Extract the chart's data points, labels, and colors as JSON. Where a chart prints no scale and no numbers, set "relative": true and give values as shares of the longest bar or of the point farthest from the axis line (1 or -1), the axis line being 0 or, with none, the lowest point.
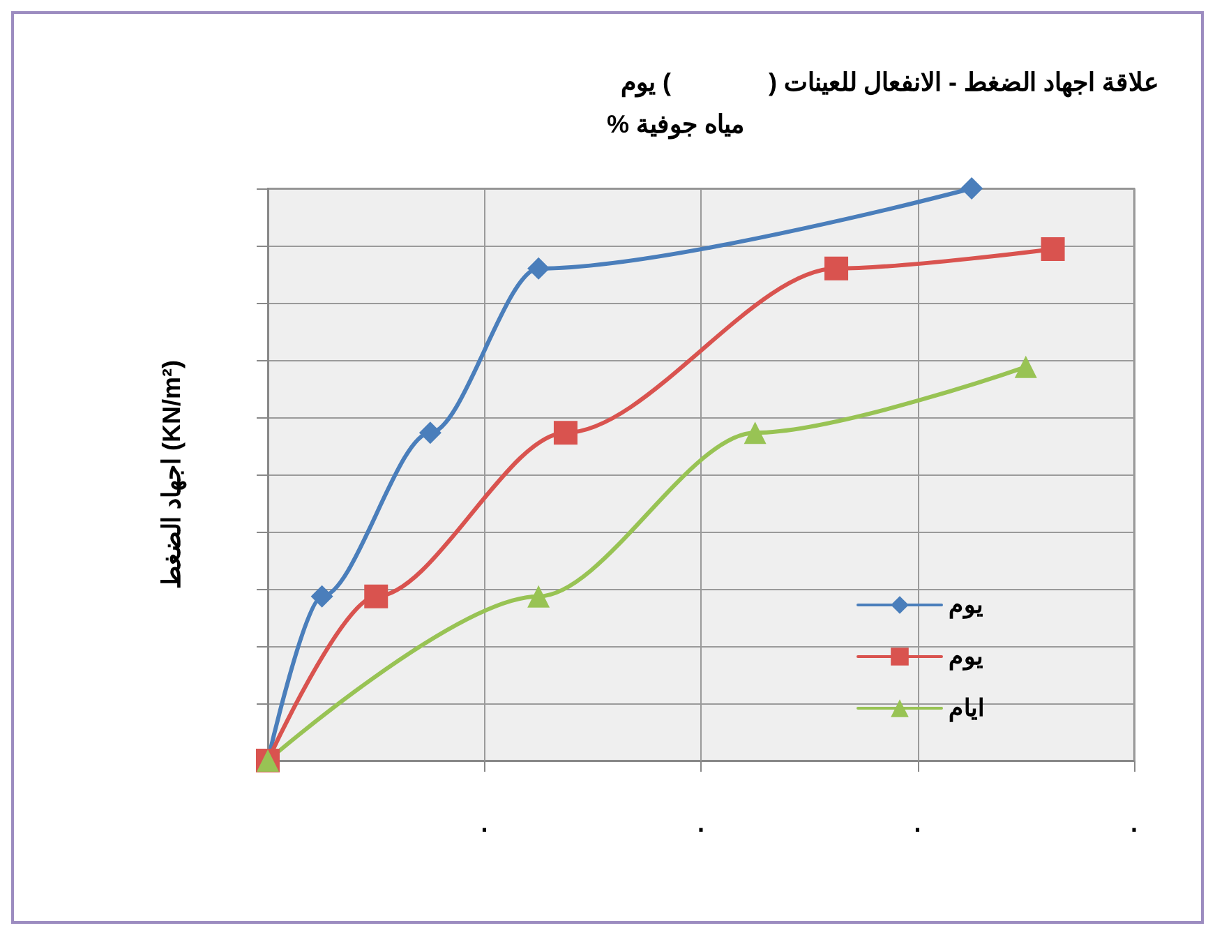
{
  "chart_data": {
    "type": "line",
    "title": "علاقة اجهاد الضغط - الانفعال للعينات (              ) يوم",
    "subtitle": "% مياه جوفية",
    "ylabel": "اجهاد الضغط (KN/m²)",
    "relative": true,
    "categories": [
      null,
      null,
      null,
      null,
      null,
      null,
      null,
      null,
      ".",
      null,
      null,
      null,
      null,
      null,
      null,
      null,
      ".",
      null,
      null,
      null,
      null,
      null,
      null,
      null,
      ".",
      null,
      null,
      null,
      null,
      null,
      null,
      null,
      "."
    ],
    "grid": true,
    "legend": "right",
    "series": [
      {
        "name": "يوم",
        "color": "#4a7ebb",
        "marker": "diamond",
        "values": [
          0,
          null,
          0.287,
          null,
          null,
          null,
          0.573,
          null,
          null,
          null,
          0.86,
          null,
          null,
          null,
          null,
          null,
          null,
          null,
          null,
          null,
          null,
          null,
          null,
          null,
          null,
          null,
          1,
          null,
          null,
          null,
          null,
          null,
          null
        ]
      },
      {
        "name": "يوم",
        "color": "#d9534f",
        "marker": "square",
        "values": [
          0,
          null,
          null,
          null,
          0.287,
          null,
          null,
          null,
          null,
          null,
          null,
          0.573,
          null,
          null,
          null,
          null,
          null,
          null,
          null,
          null,
          null,
          0.86,
          null,
          null,
          null,
          null,
          null,
          null,
          null,
          0.894,
          null,
          null,
          null
        ]
      },
      {
        "name": "ايام",
        "color": "#98c354",
        "marker": "triangle",
        "values": [
          0,
          null,
          null,
          null,
          null,
          null,
          null,
          null,
          null,
          null,
          0.287,
          null,
          null,
          null,
          null,
          null,
          null,
          null,
          0.573,
          null,
          null,
          null,
          null,
          null,
          null,
          null,
          null,
          null,
          0.688,
          null,
          null,
          null,
          null
        ]
      }
    ]
  }
}
